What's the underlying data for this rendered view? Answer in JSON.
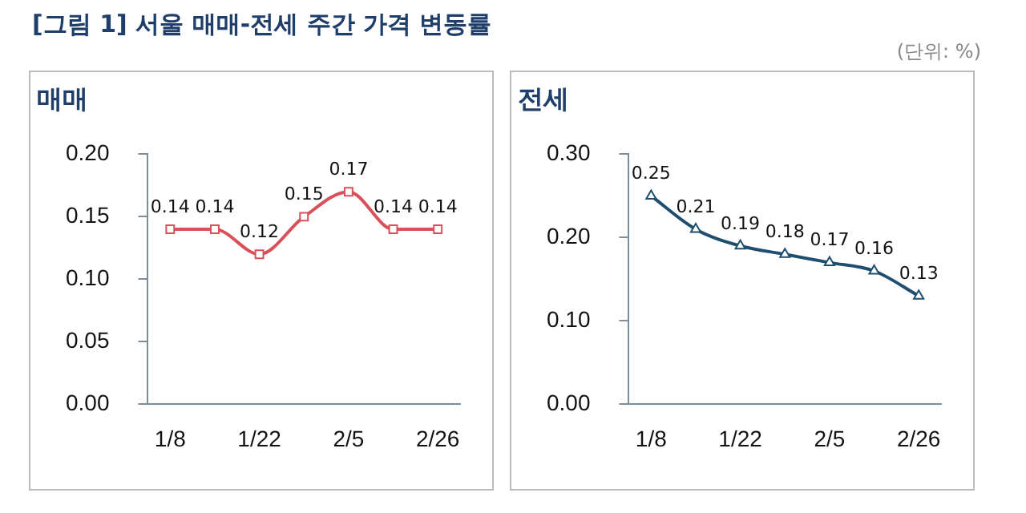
{
  "chart_data": [
    {
      "type": "line",
      "title": "매매",
      "annotations": [
        "[그림 1] 서울 매매-전세 주간 가격 변동률"
      ],
      "categories": [
        "1/8",
        null,
        "1/22",
        null,
        "2/5",
        null,
        "2/26"
      ],
      "series": [
        {
          "color": "#d9505a",
          "values": [
            0.14,
            0.14,
            0.12,
            0.15,
            0.17,
            0.14,
            0.14
          ]
        }
      ],
      "ylim": [
        0,
        0.2
      ],
      "yticks": [
        {
          "value": 0,
          "label": "0.00"
        },
        {
          "value": 0.05,
          "label": "0.05"
        },
        {
          "value": 0.1,
          "label": "0.10"
        },
        {
          "value": 0.15,
          "label": "0.15"
        },
        {
          "value": 0.2,
          "label": "0.20"
        }
      ],
      "grid": false,
      "legend": false,
      "marker": "square",
      "data_labels": true
    },
    {
      "type": "line",
      "title": "전세",
      "annotations": [
        "(단위: %)"
      ],
      "categories": [
        "1/8",
        null,
        "1/22",
        null,
        "2/5",
        null,
        "2/26"
      ],
      "series": [
        {
          "color": "#1f4e6e",
          "values": [
            0.25,
            0.21,
            0.19,
            0.18,
            0.17,
            0.16,
            0.13
          ]
        }
      ],
      "ylim": [
        0,
        0.3
      ],
      "yticks": [
        {
          "value": 0,
          "label": "0.00"
        },
        {
          "value": 0.1,
          "label": "0.10"
        },
        {
          "value": 0.2,
          "label": "0.20"
        },
        {
          "value": 0.3,
          "label": "0.30"
        }
      ],
      "grid": false,
      "legend": false,
      "marker": "triangle",
      "data_labels": true
    }
  ]
}
